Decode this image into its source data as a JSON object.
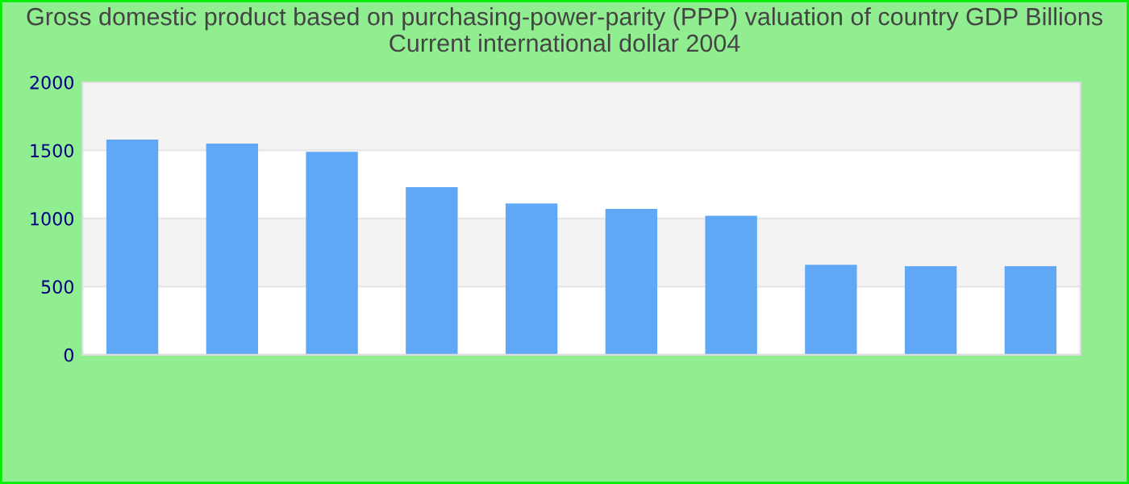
{
  "chart_data": {
    "type": "bar",
    "title": "Gross domestic product based on purchasing-power-parity (PPP) valuation of country GDP Billions Current international dollar 2004",
    "categories": [
      null,
      null,
      null,
      null,
      null,
      null,
      null,
      null,
      null,
      null
    ],
    "values": [
      1580,
      1550,
      1490,
      1230,
      1110,
      1070,
      1020,
      660,
      650,
      650
    ],
    "color": "#60a8f5",
    "ylim": [
      0,
      2000
    ],
    "yticks": [
      0,
      500,
      1000,
      1500,
      2000
    ],
    "grid": "y",
    "legend": false
  }
}
